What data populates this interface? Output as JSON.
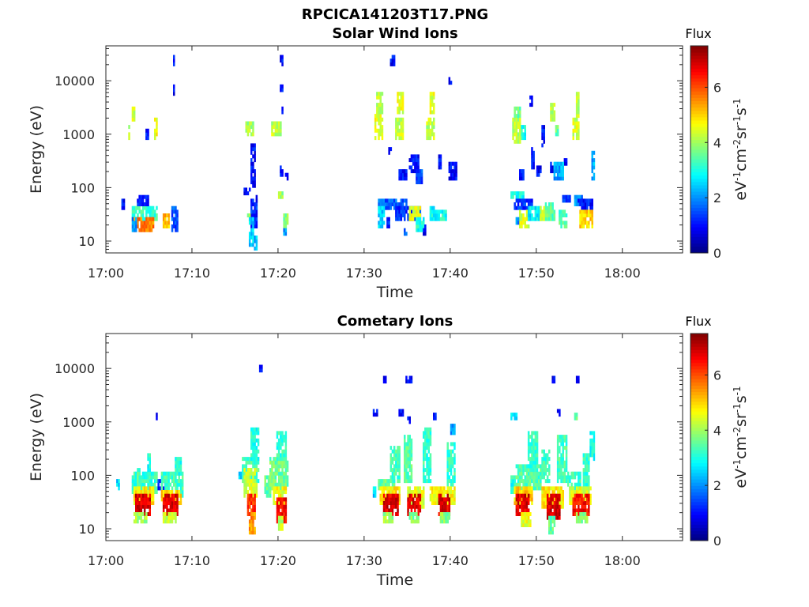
{
  "figure_title": "RPCICA141203T17.PNG",
  "chart_data": [
    {
      "type": "heatmap",
      "title": "Solar Wind Ions",
      "xlabel": "Time",
      "ylabel": "Energy (eV)",
      "y_scale": "log",
      "ylim": [
        6,
        45000
      ],
      "x_range_minutes": [
        0,
        67
      ],
      "x_tick_labels": [
        "17:00",
        "17:10",
        "17:20",
        "17:30",
        "17:40",
        "17:50",
        "18:00"
      ],
      "y_tick_labels": [
        "10",
        "100",
        "1000",
        "10000"
      ],
      "colorbar": {
        "label": "Flux",
        "unit": "eV-1cm-2sr-1s-1",
        "range": [
          0,
          7.5
        ],
        "ticks": [
          "0",
          "2",
          "4",
          "6"
        ],
        "colormap": "jet"
      },
      "blobs": [
        [
          2.5,
          2.9,
          800,
          1900,
          4.0
        ],
        [
          3.0,
          3.4,
          1800,
          3200,
          4.3
        ],
        [
          5.5,
          5.9,
          900,
          1800,
          4.6
        ],
        [
          4.6,
          5.0,
          800,
          1200,
          1.0
        ],
        [
          7.8,
          8.1,
          6000,
          7500,
          1.0
        ],
        [
          7.8,
          8.1,
          22000,
          27000,
          1.0
        ],
        [
          1.8,
          2.2,
          45,
          55,
          1.0
        ],
        [
          3.0,
          6.0,
          28,
          42,
          3.2
        ],
        [
          3.2,
          5.5,
          17,
          28,
          5.6
        ],
        [
          3.0,
          3.6,
          17,
          24,
          2.0
        ],
        [
          6.6,
          7.4,
          20,
          32,
          5.2
        ],
        [
          7.6,
          8.3,
          17,
          40,
          1.5
        ],
        [
          3.5,
          5.0,
          48,
          65,
          1.2
        ],
        [
          15.8,
          16.8,
          80,
          100,
          1.0
        ],
        [
          16.2,
          17.2,
          1000,
          1600,
          4.0
        ],
        [
          16.8,
          17.6,
          18,
          60,
          1.2
        ],
        [
          16.4,
          16.9,
          25,
          30,
          4.0
        ],
        [
          16.6,
          17.2,
          9,
          25,
          2.5
        ],
        [
          17.1,
          17.5,
          7,
          11,
          2.3
        ],
        [
          16.8,
          17.4,
          100,
          600,
          1.0
        ],
        [
          17.4,
          17.7,
          60,
          70,
          1.0
        ],
        [
          19.2,
          20.4,
          1000,
          1600,
          4.2
        ],
        [
          20.2,
          20.5,
          22000,
          27000,
          1.0
        ],
        [
          20.2,
          20.6,
          7000,
          8500,
          1.0
        ],
        [
          20.4,
          20.6,
          2500,
          3200,
          1.0
        ],
        [
          20.2,
          20.6,
          180,
          240,
          1.0
        ],
        [
          20.8,
          21.1,
          140,
          170,
          1.0
        ],
        [
          20.6,
          21.2,
          18,
          32,
          3.8
        ],
        [
          20.6,
          21.0,
          13,
          17,
          2.0
        ],
        [
          20.0,
          20.6,
          65,
          80,
          4.0
        ],
        [
          31.2,
          32.2,
          800,
          2200,
          4.5
        ],
        [
          31.4,
          32.2,
          2500,
          6000,
          4.2
        ],
        [
          33.5,
          34.6,
          900,
          1800,
          4.3
        ],
        [
          33.8,
          34.6,
          2500,
          6000,
          4.5
        ],
        [
          37.2,
          38.2,
          900,
          1800,
          4.2
        ],
        [
          37.6,
          38.2,
          2500,
          6000,
          4.5
        ],
        [
          33.0,
          33.5,
          22000,
          27000,
          1.0
        ],
        [
          39.8,
          40.1,
          9500,
          11000,
          1.0
        ],
        [
          32.8,
          33.2,
          450,
          550,
          1.0
        ],
        [
          35.2,
          36.4,
          220,
          400,
          1.0
        ],
        [
          34.0,
          35.0,
          150,
          200,
          1.0
        ],
        [
          36.0,
          36.8,
          130,
          220,
          1.5
        ],
        [
          38.6,
          39.0,
          250,
          400,
          1.0
        ],
        [
          39.8,
          40.8,
          150,
          260,
          1.0
        ],
        [
          31.5,
          35.0,
          45,
          62,
          1.6
        ],
        [
          31.6,
          32.4,
          20,
          45,
          2.5
        ],
        [
          32.5,
          33.0,
          18,
          26,
          1.2
        ],
        [
          33.5,
          36.5,
          28,
          45,
          1.3
        ],
        [
          35.2,
          36.6,
          28,
          40,
          4.5
        ],
        [
          36.0,
          37.0,
          16,
          28,
          3.0
        ],
        [
          37.6,
          38.6,
          26,
          40,
          2.8
        ],
        [
          38.6,
          39.6,
          26,
          35,
          3.0
        ],
        [
          36.8,
          37.2,
          14,
          18,
          1.0
        ],
        [
          34.6,
          35.0,
          13,
          17,
          1.5
        ],
        [
          47.2,
          48.2,
          700,
          1800,
          4.2
        ],
        [
          47.4,
          48.2,
          2200,
          3200,
          3.5
        ],
        [
          48.2,
          48.8,
          900,
          1400,
          3.0
        ],
        [
          49.2,
          49.6,
          3800,
          4600,
          1.0
        ],
        [
          50.6,
          51.0,
          600,
          1400,
          1.0
        ],
        [
          51.6,
          52.2,
          1800,
          3500,
          4.2
        ],
        [
          52.2,
          52.6,
          1000,
          1500,
          3.5
        ],
        [
          54.3,
          55.0,
          900,
          1800,
          4.4
        ],
        [
          54.5,
          54.9,
          2000,
          6000,
          4.2
        ],
        [
          49.4,
          49.7,
          250,
          500,
          1.0
        ],
        [
          51.6,
          52.0,
          220,
          300,
          1.0
        ],
        [
          53.2,
          53.6,
          300,
          350,
          1.0
        ],
        [
          52.0,
          53.2,
          150,
          300,
          2.2
        ],
        [
          56.4,
          56.8,
          150,
          500,
          2.2
        ],
        [
          48.0,
          48.6,
          150,
          200,
          1.0
        ],
        [
          50.0,
          50.6,
          180,
          240,
          1.0
        ],
        [
          47.0,
          48.6,
          65,
          85,
          3.0
        ],
        [
          47.4,
          49.6,
          40,
          62,
          1.3
        ],
        [
          48.0,
          49.2,
          18,
          35,
          4.4
        ],
        [
          49.0,
          50.6,
          24,
          44,
          2.7
        ],
        [
          50.4,
          51.0,
          28,
          42,
          4.2
        ],
        [
          51.0,
          52.2,
          28,
          50,
          3.5
        ],
        [
          52.6,
          53.6,
          20,
          35,
          3.4
        ],
        [
          54.4,
          55.4,
          52,
          65,
          2.0
        ],
        [
          54.8,
          56.6,
          40,
          58,
          1.1
        ],
        [
          55.0,
          56.6,
          20,
          38,
          5.0
        ],
        [
          53.0,
          54.0,
          55,
          70,
          1.5
        ],
        [
          47.6,
          48.0,
          22,
          27,
          2.0
        ]
      ]
    },
    {
      "type": "heatmap",
      "title": "Cometary Ions",
      "xlabel": "Time",
      "ylabel": "Energy (eV)",
      "y_scale": "log",
      "ylim": [
        6,
        45000
      ],
      "x_range_minutes": [
        0,
        67
      ],
      "x_tick_labels": [
        "17:00",
        "17:10",
        "17:20",
        "17:30",
        "17:40",
        "17:50",
        "18:00"
      ],
      "y_tick_labels": [
        "10",
        "100",
        "1000",
        "10000"
      ],
      "colorbar": {
        "label": "Flux",
        "unit": "eV-1cm-2sr-1s-1",
        "range": [
          0,
          7.5
        ],
        "ticks": [
          "0",
          "2",
          "4",
          "6"
        ],
        "colormap": "jet"
      },
      "blobs": [
        [
          5.8,
          6.1,
          1200,
          1400,
          1.0
        ],
        [
          1.2,
          1.6,
          60,
          75,
          2.5
        ],
        [
          3.0,
          6.0,
          50,
          110,
          3.2
        ],
        [
          4.8,
          5.3,
          110,
          230,
          3.0
        ],
        [
          3.5,
          4.0,
          80,
          130,
          3.5
        ],
        [
          3.2,
          5.6,
          32,
          60,
          4.8
        ],
        [
          3.4,
          5.2,
          18,
          45,
          6.8
        ],
        [
          3.2,
          4.8,
          14,
          20,
          4.0
        ],
        [
          6.1,
          7.0,
          60,
          80,
          1.2
        ],
        [
          6.4,
          9.0,
          45,
          110,
          3.3
        ],
        [
          8.0,
          8.8,
          100,
          220,
          3.0
        ],
        [
          6.4,
          8.8,
          30,
          50,
          5.0
        ],
        [
          6.6,
          8.4,
          18,
          45,
          6.8
        ],
        [
          6.6,
          8.2,
          14,
          20,
          4.2
        ],
        [
          15.4,
          15.8,
          90,
          110,
          2.5
        ],
        [
          15.8,
          17.8,
          80,
          200,
          3.3
        ],
        [
          16.8,
          17.8,
          200,
          750,
          3.0
        ],
        [
          16.0,
          17.6,
          40,
          120,
          4.4
        ],
        [
          16.4,
          17.4,
          18,
          45,
          6.2
        ],
        [
          16.6,
          17.4,
          8,
          20,
          5.5
        ],
        [
          17.8,
          18.2,
          9500,
          11000,
          1.0
        ],
        [
          18.4,
          19.2,
          45,
          100,
          3.5
        ],
        [
          19.0,
          21.2,
          60,
          200,
          3.6
        ],
        [
          19.8,
          21.0,
          200,
          650,
          3.2
        ],
        [
          19.4,
          21.0,
          30,
          60,
          4.6
        ],
        [
          19.8,
          21.0,
          14,
          35,
          6.5
        ],
        [
          20.0,
          20.6,
          10,
          15,
          4.2
        ],
        [
          31.0,
          31.5,
          1300,
          1500,
          1.0
        ],
        [
          32.2,
          32.6,
          5800,
          6600,
          1.0
        ],
        [
          34.8,
          35.6,
          5500,
          6500,
          1.0
        ],
        [
          34.0,
          34.6,
          1300,
          1700,
          1.0
        ],
        [
          35.0,
          35.4,
          1000,
          1200,
          1.0
        ],
        [
          38.0,
          38.4,
          1200,
          1400,
          1.0
        ],
        [
          31.0,
          31.4,
          40,
          55,
          2.5
        ],
        [
          31.6,
          33.6,
          55,
          80,
          3.6
        ],
        [
          33.0,
          34.2,
          80,
          350,
          3.3
        ],
        [
          34.6,
          35.6,
          80,
          550,
          3.5
        ],
        [
          36.8,
          37.8,
          80,
          700,
          3.2
        ],
        [
          39.6,
          40.6,
          70,
          400,
          3.2
        ],
        [
          31.8,
          34.2,
          30,
          55,
          4.8
        ],
        [
          32.2,
          34.0,
          18,
          40,
          6.8
        ],
        [
          32.2,
          33.4,
          14,
          20,
          4.0
        ],
        [
          35.0,
          37.0,
          28,
          55,
          4.5
        ],
        [
          35.0,
          36.6,
          18,
          40,
          6.8
        ],
        [
          35.2,
          36.4,
          14,
          20,
          3.8
        ],
        [
          37.6,
          40.6,
          30,
          55,
          4.7
        ],
        [
          38.6,
          40.0,
          18,
          40,
          6.8
        ],
        [
          38.8,
          40.0,
          14,
          20,
          3.8
        ],
        [
          40.0,
          40.6,
          600,
          900,
          2.0
        ],
        [
          47.0,
          47.8,
          1100,
          1300,
          2.8
        ],
        [
          52.4,
          52.8,
          1300,
          1500,
          1.0
        ],
        [
          51.8,
          52.2,
          5800,
          6600,
          1.0
        ],
        [
          54.6,
          55.0,
          5800,
          6600,
          1.0
        ],
        [
          54.4,
          54.8,
          1200,
          1400,
          3.5
        ],
        [
          47.0,
          47.6,
          50,
          100,
          3.0
        ],
        [
          47.6,
          50.6,
          60,
          150,
          3.4
        ],
        [
          49.0,
          50.2,
          150,
          650,
          3.2
        ],
        [
          50.6,
          51.6,
          80,
          300,
          3.3
        ],
        [
          52.4,
          53.6,
          80,
          550,
          3.3
        ],
        [
          53.6,
          55.2,
          60,
          110,
          3.2
        ],
        [
          55.4,
          56.2,
          70,
          250,
          3.2
        ],
        [
          56.2,
          56.8,
          200,
          600,
          3.0
        ],
        [
          47.4,
          49.6,
          30,
          55,
          5.0
        ],
        [
          47.6,
          49.2,
          18,
          40,
          6.8
        ],
        [
          48.2,
          49.4,
          12,
          20,
          4.5
        ],
        [
          50.6,
          53.2,
          28,
          60,
          4.8
        ],
        [
          51.2,
          52.8,
          16,
          40,
          6.8
        ],
        [
          51.4,
          52.2,
          8,
          16,
          3.5
        ],
        [
          53.8,
          56.4,
          30,
          60,
          4.5
        ],
        [
          54.2,
          56.2,
          18,
          40,
          6.5
        ],
        [
          54.6,
          56.0,
          14,
          20,
          3.8
        ]
      ]
    }
  ]
}
